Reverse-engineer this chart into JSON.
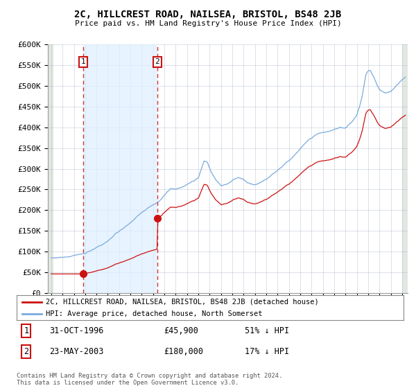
{
  "title": "2C, HILLCREST ROAD, NAILSEA, BRISTOL, BS48 2JB",
  "subtitle": "Price paid vs. HM Land Registry's House Price Index (HPI)",
  "red_label": "2C, HILLCREST ROAD, NAILSEA, BRISTOL, BS48 2JB (detached house)",
  "blue_label": "HPI: Average price, detached house, North Somerset",
  "t1_x": 1996.83,
  "t1_y": 45900,
  "t2_x": 2003.38,
  "t2_y": 180000,
  "t1_date": "31-OCT-1996",
  "t1_price": "£45,900",
  "t1_pct": "51% ↓ HPI",
  "t2_date": "23-MAY-2003",
  "t2_price": "£180,000",
  "t2_pct": "17% ↓ HPI",
  "footer": "Contains HM Land Registry data © Crown copyright and database right 2024.\nThis data is licensed under the Open Government Licence v3.0.",
  "ylim": [
    0,
    600000
  ],
  "xlim_start": 1994.0,
  "xlim_end": 2025.5,
  "yticks": [
    0,
    50000,
    100000,
    150000,
    200000,
    250000,
    300000,
    350000,
    400000,
    450000,
    500000,
    550000,
    600000
  ],
  "bg_color": "#ffffff",
  "grid_color": "#b0b8cc",
  "red_color": "#cc1111",
  "blue_color": "#7aaadd",
  "shade_color": "#ddeeff"
}
